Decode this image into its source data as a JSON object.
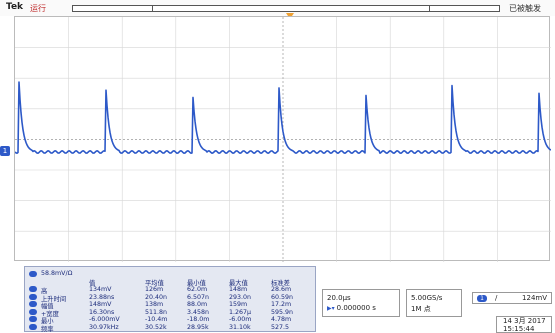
{
  "header": {
    "brand": "Tek",
    "status": "运行",
    "trigger_status": "已被触发"
  },
  "channel": {
    "marker": "1",
    "color": "#2d59c8"
  },
  "measurements": {
    "title": "58.8mV/Ω",
    "headers": [
      "值",
      "平均值",
      "最小值",
      "最大值",
      "标准差"
    ],
    "rows": [
      {
        "label": "高",
        "values": [
          "134mV",
          "126m",
          "62.0m",
          "148m",
          "28.6m"
        ]
      },
      {
        "label": "上升时间",
        "values": [
          "23.88ns",
          "20.40n",
          "6.507n",
          "293.0n",
          "60.59n"
        ]
      },
      {
        "label": "幅值",
        "values": [
          "148mV",
          "138m",
          "88.0m",
          "159m",
          "17.2m"
        ]
      },
      {
        "label": "+宽度",
        "values": [
          "16.30ns",
          "511.8n",
          "3.458n",
          "1.267μ",
          "595.9n"
        ]
      },
      {
        "label": "最小",
        "values": [
          "-6.000mV",
          "-10.4m",
          "-18.0m",
          "-6.00m",
          "4.78m"
        ]
      },
      {
        "label": "频率",
        "values": [
          "30.97kHz",
          "30.52k",
          "28.95k",
          "31.10k",
          "527.5"
        ]
      }
    ]
  },
  "timebase": {
    "scale": "20.0μs",
    "position": "0.000000 s"
  },
  "acquisition": {
    "rate": "5.00GS/s",
    "length": "1M 点"
  },
  "trigger": {
    "channel": "1",
    "slope": "/",
    "level": "124mV"
  },
  "datetime": {
    "date": "14 3月 2017",
    "time": "15:15:44"
  },
  "waveform": {
    "period_us": 32.3,
    "baseline_mv": 0,
    "peak_mv": 134
  }
}
